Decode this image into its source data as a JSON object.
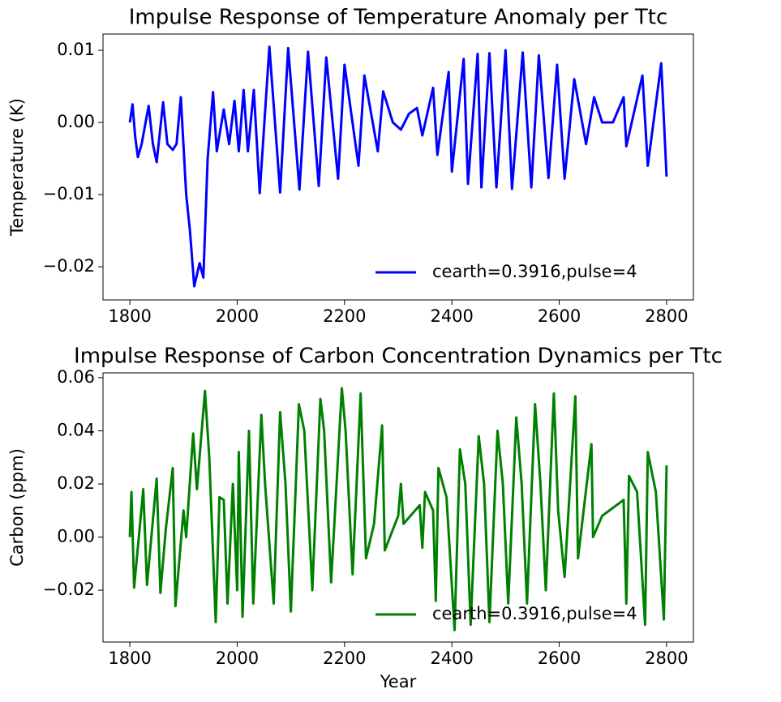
{
  "chart_data": [
    {
      "type": "line",
      "title": "Impulse Response of Temperature Anomaly per Ttc",
      "y_label": "Temperature (K)",
      "x": [
        1800,
        1805,
        1810,
        1815,
        1822,
        1835,
        1843,
        1850,
        1862,
        1870,
        1880,
        1887,
        1895,
        1905,
        1912,
        1920,
        1930,
        1937,
        1945,
        1955,
        1962,
        1975,
        1985,
        1995,
        2003,
        2012,
        2020,
        2031,
        2042,
        2060,
        2080,
        2095,
        2116,
        2132,
        2152,
        2166,
        2188,
        2200,
        2226,
        2237,
        2262,
        2272,
        2290,
        2305,
        2320,
        2335,
        2345,
        2365,
        2373,
        2394,
        2400,
        2422,
        2430,
        2448,
        2455,
        2470,
        2483,
        2500,
        2512,
        2532,
        2548,
        2562,
        2580,
        2596,
        2610,
        2628,
        2650,
        2665,
        2680,
        2700,
        2720,
        2725,
        2755,
        2765,
        2790,
        2800
      ],
      "series": [
        {
          "name": "cearth=0.3916,pulse=4",
          "color": "#0000ff",
          "values": [
            0.0,
            0.0025,
            -0.002,
            -0.0048,
            -0.003,
            0.0023,
            -0.003,
            -0.0055,
            0.0028,
            -0.003,
            -0.0038,
            -0.003,
            0.0035,
            -0.01,
            -0.015,
            -0.0227,
            -0.0195,
            -0.0215,
            -0.005,
            0.0042,
            -0.004,
            0.0018,
            -0.003,
            0.003,
            -0.004,
            0.0045,
            -0.004,
            0.0045,
            -0.0098,
            0.0105,
            -0.0097,
            0.0103,
            -0.0093,
            0.0098,
            -0.0088,
            0.009,
            -0.0078,
            0.008,
            -0.006,
            0.0065,
            -0.004,
            0.0043,
            0.0,
            -0.001,
            0.0012,
            0.002,
            -0.0018,
            0.0048,
            -0.0045,
            0.007,
            -0.0068,
            0.0088,
            -0.0085,
            0.0095,
            -0.009,
            0.0096,
            -0.009,
            0.01,
            -0.0092,
            0.0097,
            -0.009,
            0.0093,
            -0.0077,
            0.008,
            -0.0078,
            0.006,
            -0.003,
            0.0035,
            0.0,
            0.0,
            0.0035,
            -0.0033,
            0.0065,
            -0.006,
            0.0082,
            -0.0075
          ]
        }
      ],
      "xlim": [
        1750,
        2850
      ],
      "ylim": [
        -0.0246,
        0.01225
      ],
      "xticks": [
        1800,
        2000,
        2200,
        2400,
        2600,
        2800
      ],
      "yticks": [
        {
          "value": -0.02,
          "label": "−0.02"
        },
        {
          "value": -0.01,
          "label": "−0.01"
        },
        {
          "value": 0.0,
          "label": "0.00"
        },
        {
          "value": 0.01,
          "label": "0.01"
        }
      ],
      "legend": "lower right"
    },
    {
      "type": "line",
      "title": "Impulse Response of Carbon Concentration Dynamics per Ttc",
      "y_label": "Carbon (ppm)",
      "x_label": "Year",
      "x": [
        1800,
        1803,
        1808,
        1825,
        1832,
        1850,
        1857,
        1867,
        1880,
        1885,
        1900,
        1905,
        1918,
        1925,
        1940,
        1948,
        1960,
        1967,
        1975,
        1982,
        1992,
        2000,
        2003,
        2010,
        2022,
        2030,
        2045,
        2052,
        2068,
        2080,
        2090,
        2100,
        2115,
        2125,
        2140,
        2155,
        2162,
        2175,
        2195,
        2202,
        2215,
        2230,
        2240,
        2255,
        2270,
        2275,
        2300,
        2305,
        2310,
        2340,
        2345,
        2350,
        2365,
        2370,
        2375,
        2390,
        2405,
        2415,
        2425,
        2435,
        2450,
        2460,
        2470,
        2485,
        2495,
        2505,
        2520,
        2530,
        2540,
        2555,
        2565,
        2575,
        2590,
        2598,
        2610,
        2630,
        2635,
        2660,
        2663,
        2680,
        2720,
        2725,
        2730,
        2745,
        2760,
        2765,
        2780,
        2795,
        2800
      ],
      "series": [
        {
          "name": "cearth=0.3916,pulse=4",
          "color": "#008000",
          "values": [
            0.0,
            0.017,
            -0.019,
            0.018,
            -0.018,
            0.022,
            -0.021,
            0.003,
            0.026,
            -0.026,
            0.01,
            0.0,
            0.039,
            0.018,
            0.055,
            0.03,
            -0.032,
            0.015,
            0.014,
            -0.025,
            0.02,
            -0.02,
            0.032,
            -0.03,
            0.04,
            -0.025,
            0.046,
            0.02,
            -0.025,
            0.047,
            0.02,
            -0.028,
            0.05,
            0.04,
            -0.02,
            0.052,
            0.04,
            -0.017,
            0.056,
            0.04,
            -0.014,
            0.054,
            -0.008,
            0.005,
            0.042,
            -0.005,
            0.008,
            0.02,
            0.005,
            0.012,
            -0.004,
            0.017,
            0.01,
            -0.024,
            0.026,
            0.015,
            -0.035,
            0.033,
            0.02,
            -0.033,
            0.038,
            0.02,
            -0.032,
            0.04,
            0.02,
            -0.025,
            0.045,
            0.02,
            -0.025,
            0.05,
            0.02,
            -0.02,
            0.054,
            0.01,
            -0.015,
            0.053,
            -0.008,
            0.035,
            0.0,
            0.008,
            0.014,
            -0.025,
            0.023,
            0.017,
            -0.033,
            0.032,
            0.017,
            -0.031,
            0.027
          ]
        }
      ],
      "xlim": [
        1750,
        2850
      ],
      "ylim": [
        -0.0395,
        0.0618
      ],
      "xticks": [
        1800,
        2000,
        2200,
        2400,
        2600,
        2800
      ],
      "yticks": [
        {
          "value": -0.02,
          "label": "−0.02"
        },
        {
          "value": 0.0,
          "label": "0.00"
        },
        {
          "value": 0.02,
          "label": "0.02"
        },
        {
          "value": 0.04,
          "label": "0.04"
        },
        {
          "value": 0.06,
          "label": "0.06"
        }
      ],
      "legend": "lower right"
    }
  ]
}
